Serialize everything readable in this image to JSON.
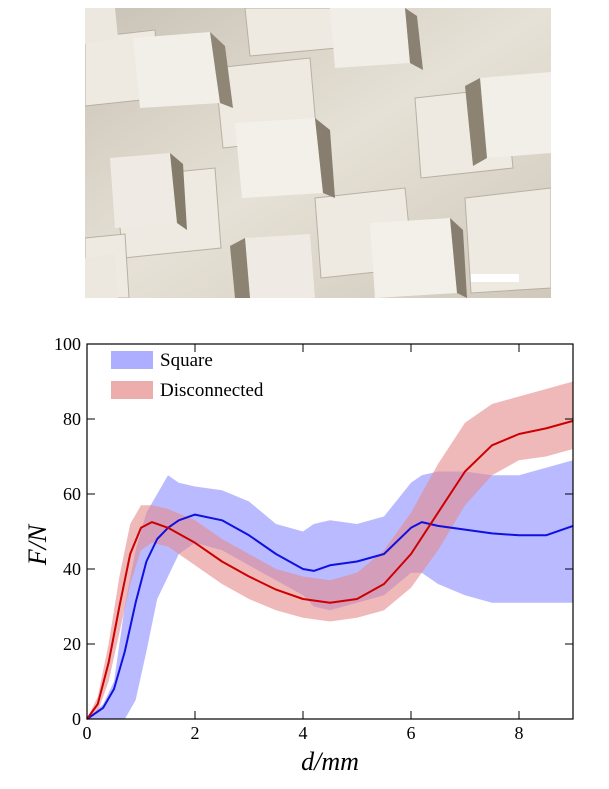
{
  "photo": {
    "scale_bar_color": "#ffffff"
  },
  "chart_data": {
    "type": "line",
    "xlabel": "d/mm",
    "ylabel": "F/N",
    "xlim": [
      0,
      9
    ],
    "ylim": [
      0,
      100
    ],
    "x_ticks": [
      0,
      2,
      4,
      6,
      8
    ],
    "y_ticks": [
      0,
      20,
      40,
      60,
      80,
      100
    ],
    "legend_position": "top-left",
    "series": [
      {
        "name": "Square",
        "line_color": "#1010e0",
        "band_color": "#8a8cff",
        "x": [
          0,
          0.3,
          0.5,
          0.7,
          0.9,
          1.1,
          1.3,
          1.5,
          1.7,
          2.0,
          2.5,
          3.0,
          3.5,
          4.0,
          4.2,
          4.5,
          5.0,
          5.5,
          6.0,
          6.2,
          6.5,
          7.0,
          7.5,
          8.0,
          8.5,
          9.0
        ],
        "mean": [
          0,
          3,
          8,
          18,
          31,
          42,
          48,
          51,
          53,
          54.5,
          53,
          49,
          44,
          40,
          39.5,
          41,
          42,
          44,
          51,
          52.5,
          51.5,
          50.5,
          49.5,
          49,
          49,
          51.5
        ],
        "upper": [
          0,
          4,
          10,
          30,
          45,
          55,
          60,
          65,
          63,
          62,
          61,
          58,
          52,
          50,
          52,
          53,
          52,
          54,
          63,
          65,
          66,
          66,
          65,
          65,
          67,
          69
        ],
        "lower": [
          0,
          0,
          0,
          0,
          5,
          18,
          32,
          38,
          44,
          47,
          45,
          41,
          37,
          33,
          30,
          29,
          31,
          33,
          39,
          39,
          36,
          33,
          31,
          31,
          31,
          31
        ]
      },
      {
        "name": "Disconnected",
        "line_color": "#cc0000",
        "band_color": "#e68a8a",
        "x": [
          0,
          0.2,
          0.4,
          0.6,
          0.8,
          1.0,
          1.2,
          1.5,
          2.0,
          2.5,
          3.0,
          3.5,
          4.0,
          4.5,
          5.0,
          5.5,
          6.0,
          6.5,
          7.0,
          7.5,
          8.0,
          8.5,
          9.0
        ],
        "mean": [
          0,
          4,
          15,
          30,
          44,
          51,
          52.5,
          51,
          47,
          42,
          38,
          34.5,
          32,
          31,
          32,
          36,
          44,
          55,
          66,
          73,
          76,
          77.5,
          79.5
        ],
        "upper": [
          0,
          6,
          20,
          38,
          52,
          57,
          57,
          56,
          53,
          48,
          44,
          40,
          38,
          37,
          39,
          45,
          55,
          68,
          79,
          84,
          86,
          88,
          90
        ],
        "lower": [
          0,
          2,
          10,
          23,
          36,
          45,
          47,
          46,
          41,
          36,
          32,
          29,
          27,
          26,
          27,
          29,
          35,
          45,
          57,
          65,
          69,
          70,
          72
        ]
      }
    ]
  }
}
